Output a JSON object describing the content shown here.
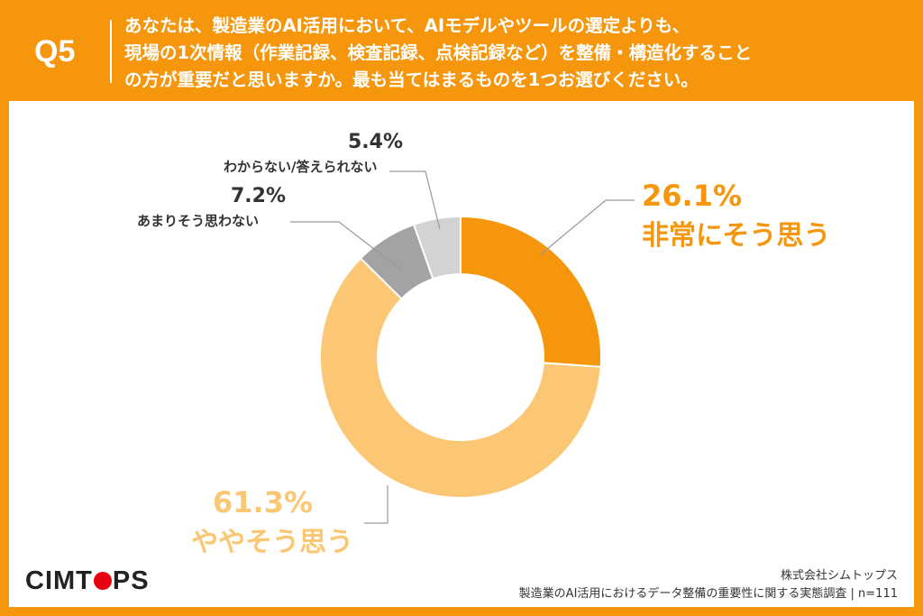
{
  "header": {
    "qnum": "Q5",
    "question_lines": [
      "あなたは、製造業のAI活用において、AIモデルやツールの選定よりも、",
      "現場の1次情報（作業記録、検査記録、点検記録など）を整備・構造化すること",
      "の方が重要だと思いますか。最も当てはまるものを1つお選びください。"
    ]
  },
  "chart_data": {
    "type": "pie",
    "donut": true,
    "slices": [
      {
        "label": "非常にそう思う",
        "pct_label": "26.1%",
        "value": 26.1,
        "color": "#F5960C"
      },
      {
        "label": "ややそう思う",
        "pct_label": "61.3%",
        "value": 61.3,
        "color": "#FCC774"
      },
      {
        "label": "あまりそう思わない",
        "pct_label": "7.2%",
        "value": 7.2,
        "color": "#A3A3A3"
      },
      {
        "label": "わからない/答えられない",
        "pct_label": "5.4%",
        "value": 5.4,
        "color": "#D3D3D3"
      }
    ]
  },
  "footer": {
    "logo": {
      "before": "CIMT",
      "after": "PS"
    },
    "company": "株式会社シムトップス",
    "source": "製造業のAI活用におけるデータ整備の重要性に関する実態調査 | n=111"
  }
}
